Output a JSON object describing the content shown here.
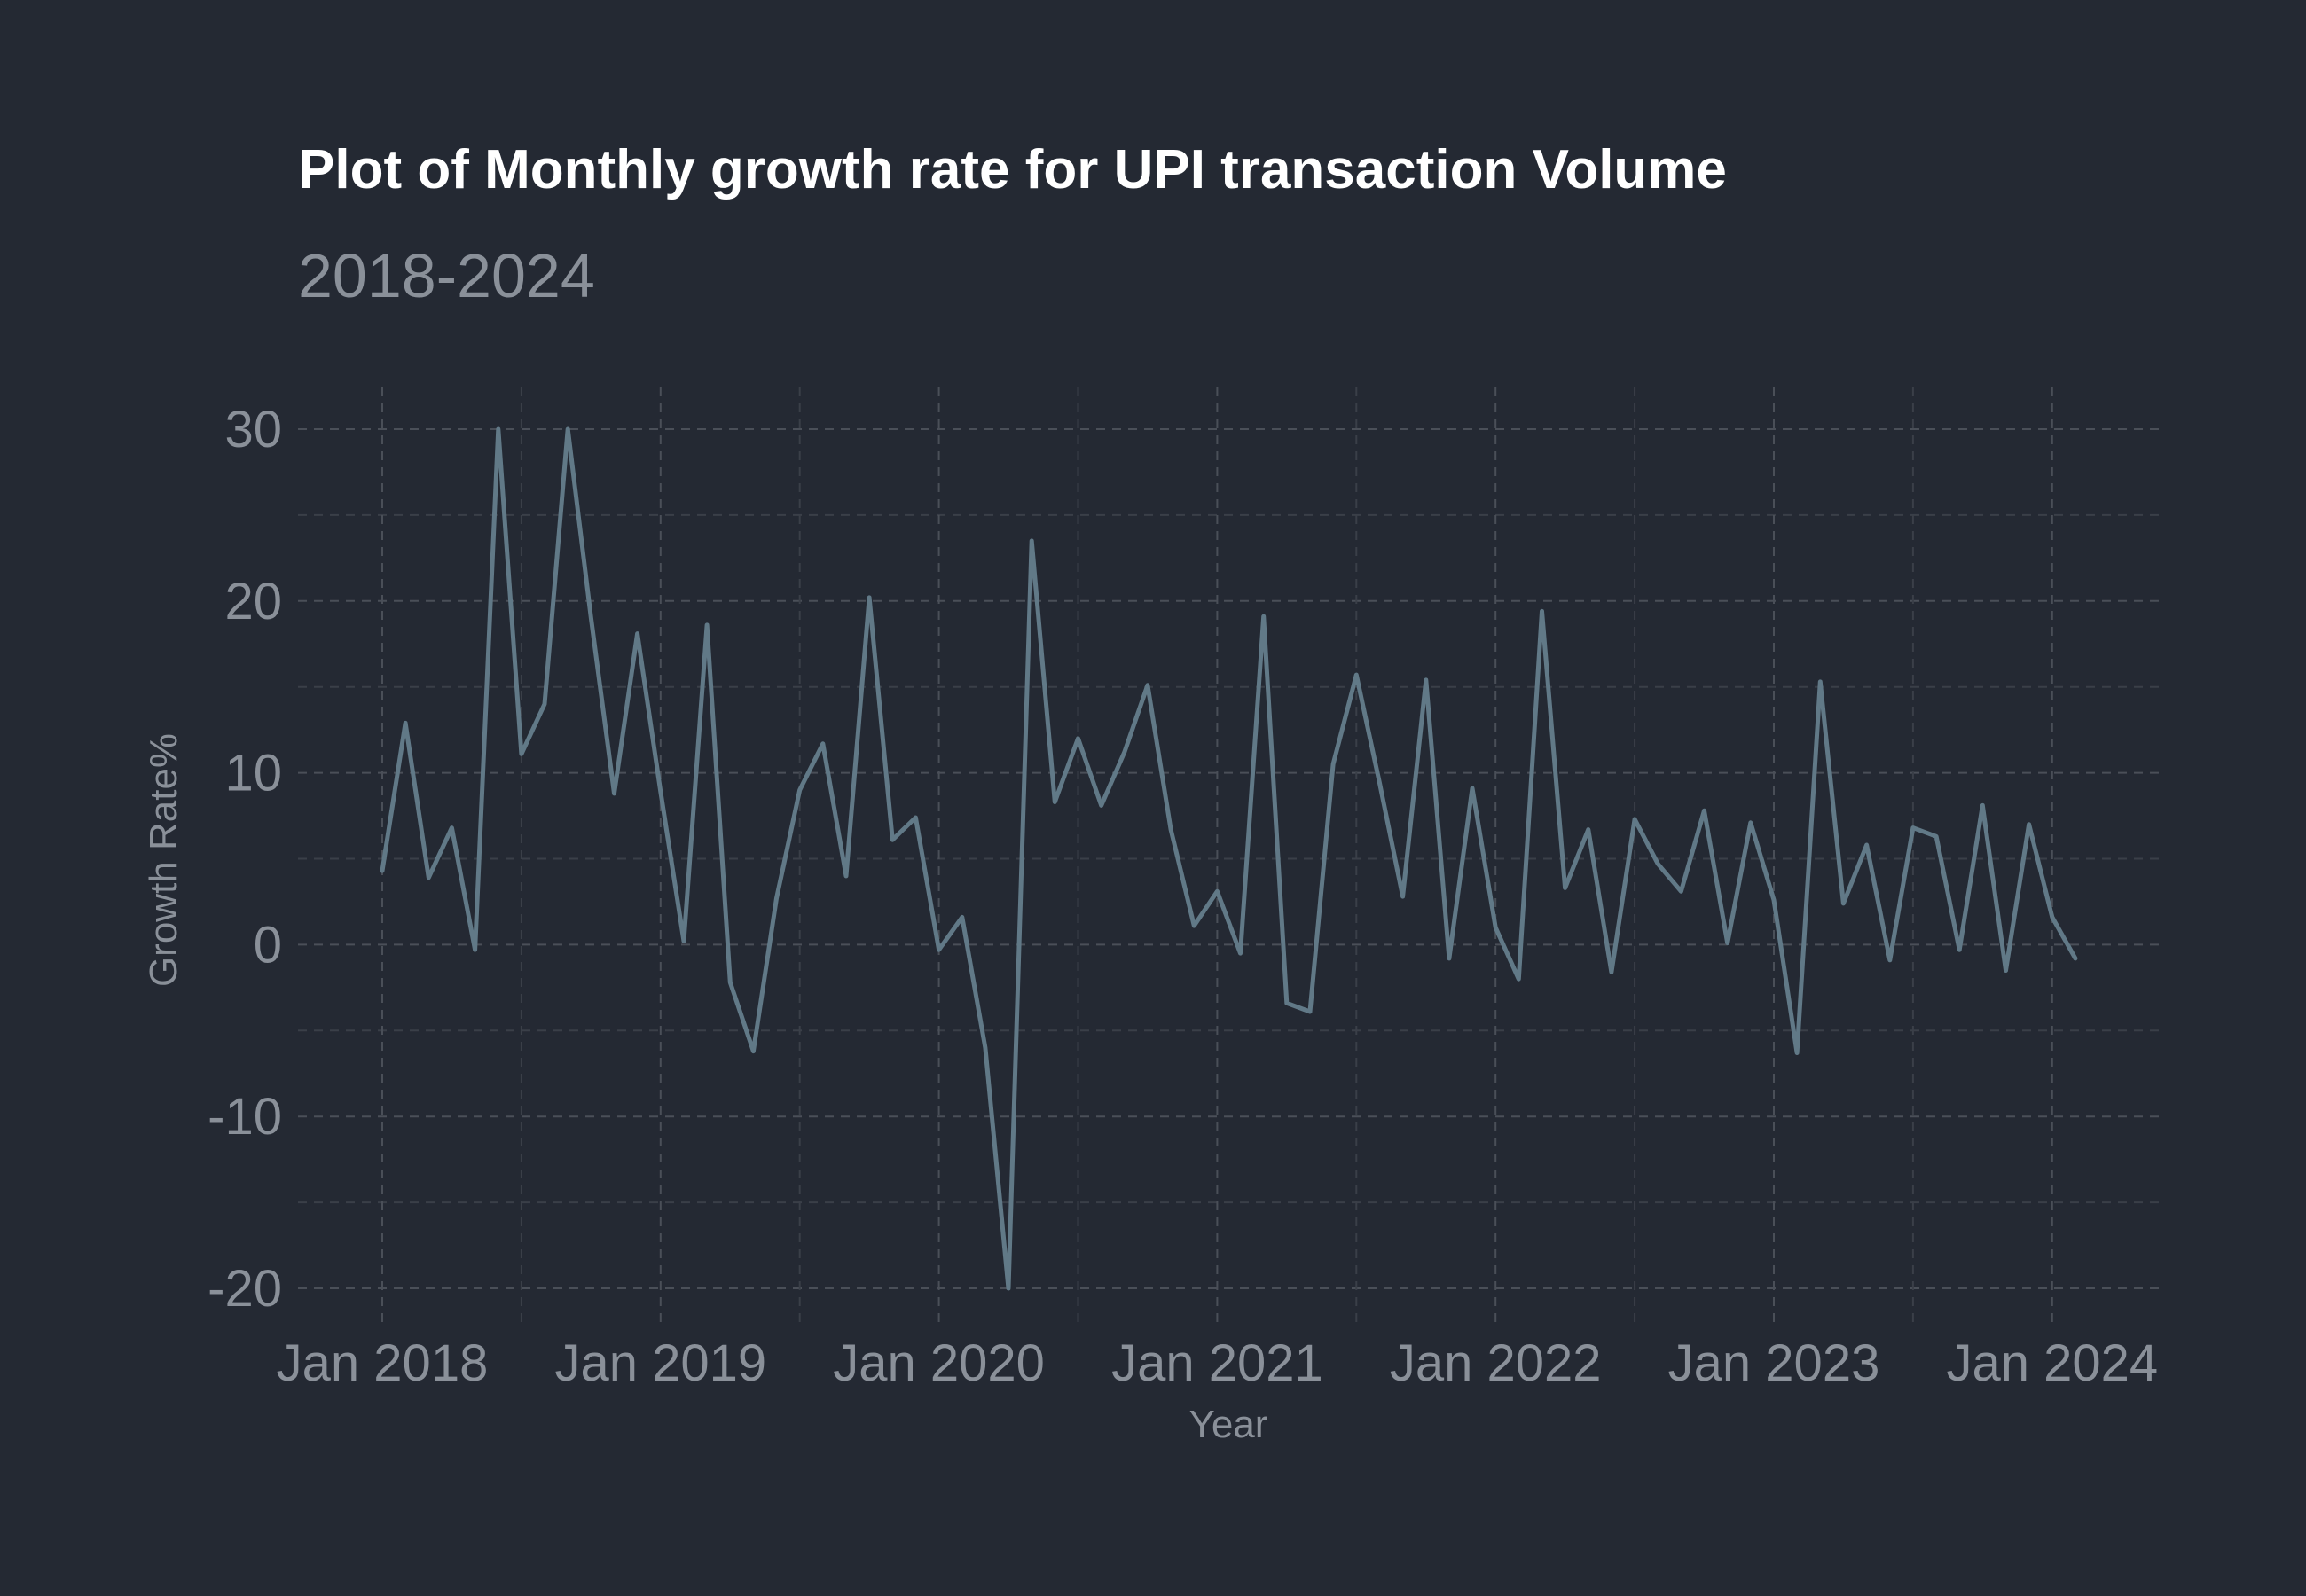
{
  "chart_data": {
    "type": "line",
    "title": "Plot of Monthly growth rate for UPI transaction Volume",
    "subtitle": "2018-2024",
    "xlabel": "Year",
    "ylabel": "Growth Rate%",
    "x_ticks": [
      "Jan 2018",
      "Jan 2019",
      "Jan 2020",
      "Jan 2021",
      "Jan 2022",
      "Jan 2023",
      "Jan 2024"
    ],
    "y_ticks": [
      "30",
      "20",
      "10",
      "0",
      "-10",
      "-20"
    ],
    "xlim": [
      "2017-10",
      "2024-05"
    ],
    "ylim": [
      -22.5,
      32.5
    ],
    "grid": true,
    "line_color": "#617987",
    "background": "#242933",
    "x": [
      "2018-01",
      "2018-02",
      "2018-03",
      "2018-04",
      "2018-05",
      "2018-06",
      "2018-07",
      "2018-08",
      "2018-09",
      "2018-10",
      "2018-11",
      "2018-12",
      "2019-01",
      "2019-02",
      "2019-03",
      "2019-04",
      "2019-05",
      "2019-06",
      "2019-07",
      "2019-08",
      "2019-09",
      "2019-10",
      "2019-11",
      "2019-12",
      "2020-01",
      "2020-02",
      "2020-03",
      "2020-04",
      "2020-05",
      "2020-06",
      "2020-07",
      "2020-08",
      "2020-09",
      "2020-10",
      "2020-11",
      "2020-12",
      "2021-01",
      "2021-02",
      "2021-03",
      "2021-04",
      "2021-05",
      "2021-06",
      "2021-07",
      "2021-08",
      "2021-09",
      "2021-10",
      "2021-11",
      "2021-12",
      "2022-01",
      "2022-02",
      "2022-03",
      "2022-04",
      "2022-05",
      "2022-06",
      "2022-07",
      "2022-08",
      "2022-09",
      "2022-10",
      "2022-11",
      "2022-12",
      "2023-01",
      "2023-02",
      "2023-03",
      "2023-04",
      "2023-05",
      "2023-06",
      "2023-07",
      "2023-08",
      "2023-09",
      "2023-10",
      "2023-11",
      "2023-12",
      "2024-01",
      "2024-02"
    ],
    "values": [
      4.3,
      12.9,
      3.9,
      6.8,
      -0.3,
      30.0,
      11.1,
      14.0,
      30.0,
      19.0,
      8.8,
      18.1,
      8.9,
      0.2,
      18.6,
      -2.2,
      -6.2,
      2.7,
      9.0,
      11.7,
      4.0,
      20.2,
      6.1,
      7.4,
      -0.3,
      1.6,
      -6.0,
      -20.0,
      23.5,
      8.3,
      12.0,
      8.1,
      11.2,
      15.1,
      6.7,
      1.1,
      3.1,
      -0.5,
      19.1,
      -3.4,
      -3.9,
      10.5,
      15.7,
      9.4,
      2.8,
      15.4,
      -0.8,
      9.1,
      1.0,
      -2.0,
      19.4,
      3.3,
      6.7,
      -1.6,
      7.3,
      4.7,
      3.1,
      7.8,
      0.1,
      7.1,
      2.6,
      -6.3,
      15.3,
      2.4,
      5.8,
      -0.9,
      6.8,
      6.3,
      -0.3,
      8.1,
      -1.5,
      7.0,
      1.6,
      -0.8
    ]
  }
}
